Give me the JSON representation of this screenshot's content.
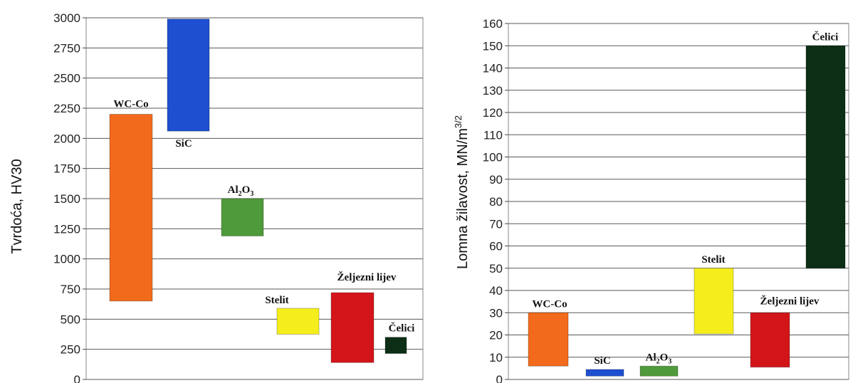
{
  "chart_data": [
    {
      "type": "bar",
      "subtype": "floating-range",
      "ylabel": "Tvrdoća, HV30",
      "ylim": [
        0,
        3000
      ],
      "yticks": [
        0,
        250,
        500,
        750,
        1000,
        1250,
        1500,
        1750,
        2000,
        2250,
        2500,
        2750,
        3000
      ],
      "grid": true,
      "bars": [
        {
          "label": "WC-Co",
          "low": 650,
          "high": 2200,
          "color": "#f26a1b"
        },
        {
          "label": "SiC",
          "low": 2060,
          "high": 2990,
          "color": "#1e4fd0"
        },
        {
          "label": "Al2O3",
          "low": 1190,
          "high": 1500,
          "color": "#4f9a3a"
        },
        {
          "label": "Stelit",
          "low": 375,
          "high": 590,
          "color": "#f5ee1c"
        },
        {
          "label": "Željezni lijev",
          "low": 140,
          "high": 720,
          "color": "#d3151a"
        },
        {
          "label": "Čelici",
          "low": 215,
          "high": 350,
          "color": "#0b2e14"
        }
      ]
    },
    {
      "type": "bar",
      "subtype": "floating-range",
      "ylabel": "Lomna žilavost, MN/m3/2",
      "ylim": [
        0,
        160
      ],
      "yticks": [
        0,
        10,
        20,
        30,
        40,
        50,
        60,
        70,
        80,
        90,
        100,
        110,
        120,
        130,
        140,
        150,
        160
      ],
      "grid": true,
      "bars": [
        {
          "label": "WC-Co",
          "low": 6,
          "high": 30,
          "color": "#f26a1b"
        },
        {
          "label": "SiC",
          "low": 1.5,
          "high": 4.5,
          "color": "#1e4fd0"
        },
        {
          "label": "Al2O3",
          "low": 1.5,
          "high": 6,
          "color": "#4f9a3a"
        },
        {
          "label": "Stelit",
          "low": 20.5,
          "high": 50,
          "color": "#f5ee1c"
        },
        {
          "label": "Željezni lijev",
          "low": 5.5,
          "high": 30,
          "color": "#d3151a"
        },
        {
          "label": "Čelici",
          "low": 50,
          "high": 150,
          "color": "#0b2e14"
        }
      ]
    }
  ]
}
